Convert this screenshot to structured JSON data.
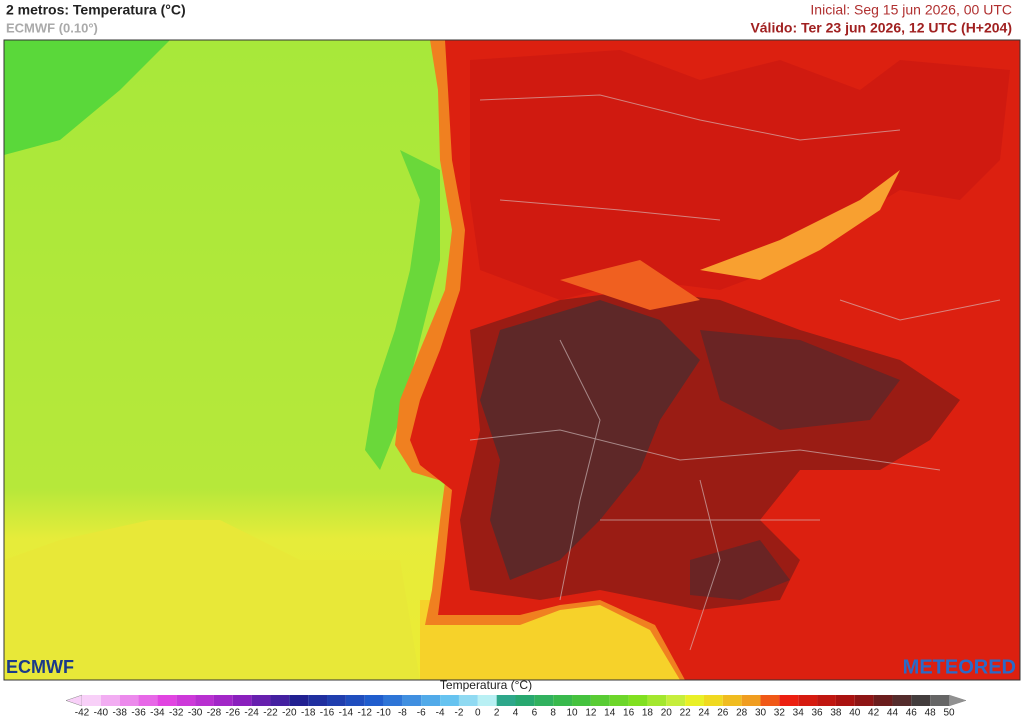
{
  "header": {
    "title": "2 metros: Temperatura (°C)",
    "model": "ECMWF (0.10°)",
    "initial": "Inicial: Seg 15 jun 2026, 00 UTC",
    "valid": "Válido: Ter 23 jun 2026, 12 UTC (H+204)"
  },
  "logos": {
    "left": "ECMWF",
    "right": "METEORED"
  },
  "colorbar": {
    "title": "Temperatura (°C)",
    "ticks": [
      -42,
      -40,
      -38,
      -36,
      -34,
      -32,
      -30,
      -28,
      -26,
      -24,
      -22,
      -20,
      -18,
      -16,
      -14,
      -12,
      -10,
      -8,
      -6,
      -4,
      -2,
      0,
      2,
      4,
      6,
      8,
      10,
      12,
      14,
      16,
      18,
      20,
      22,
      24,
      26,
      28,
      30,
      32,
      34,
      36,
      38,
      40,
      42,
      44,
      46,
      48,
      50
    ]
  }
}
